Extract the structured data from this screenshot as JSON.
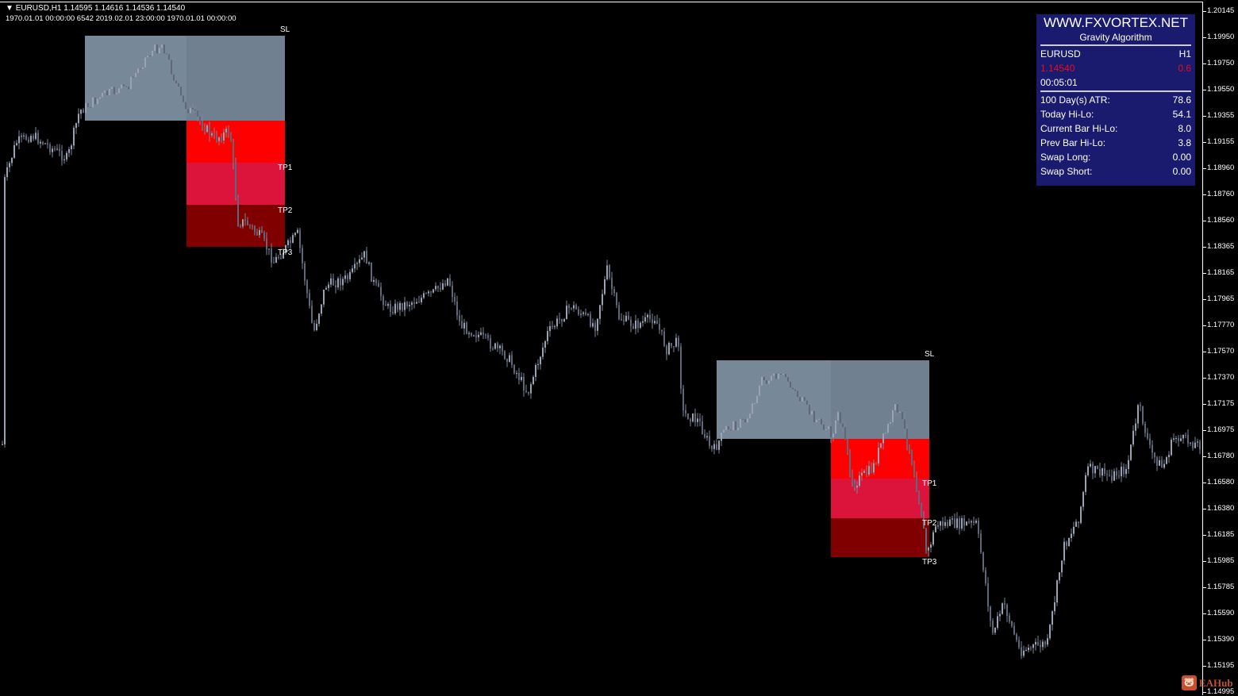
{
  "header": {
    "symbol_line": "EURUSD,H1  1.14595 1.14616 1.14536 1.14540",
    "info_line": "1970.01.01 00:00:00 6542 2019.02.01 23:00:00 1970.01.01 00:00:00"
  },
  "price_axis": [
    "1.20145",
    "1.19950",
    "1.19750",
    "1.19550",
    "1.19355",
    "1.19155",
    "1.18960",
    "1.18760",
    "1.18560",
    "1.18365",
    "1.18165",
    "1.17965",
    "1.17770",
    "1.17570",
    "1.17370",
    "1.17175",
    "1.16975",
    "1.16780",
    "1.16580",
    "1.16380",
    "1.16185",
    "1.15985",
    "1.15785",
    "1.15590",
    "1.15390",
    "1.15195",
    "1.14995"
  ],
  "zones": [
    {
      "sl": "SL",
      "tp1": "TP1",
      "tp2": "TP2",
      "tp3": "TP3"
    },
    {
      "sl": "SL",
      "tp1": "TP1",
      "tp2": "TP2",
      "tp3": "TP3"
    }
  ],
  "colors": {
    "bg": "#000000",
    "candle": "#7d8799",
    "sl_zone_light": "#778899",
    "sl_zone_dark": "#708090",
    "tp1": "#ff0000",
    "tp2": "#dc143c",
    "tp3": "#800000",
    "panel": "#1a1a6e"
  },
  "panel": {
    "site": "WWW.FXVORTEX.NET",
    "subtitle": "Gravity Algorithm",
    "symbol": "EURUSD",
    "timeframe": "H1",
    "price": "1.14540",
    "spread": "0.6",
    "timer": "00:05:01",
    "stats": [
      {
        "label": "100 Day(s) ATR:",
        "value": "78.6"
      },
      {
        "label": "Today Hi-Lo:",
        "value": "54.1"
      },
      {
        "label": "Current Bar Hi-Lo:",
        "value": "8.0"
      },
      {
        "label": "Prev Bar Hi-Lo:",
        "value": "3.8"
      },
      {
        "label": "Swap Long:",
        "value": "0.00"
      },
      {
        "label": "Swap Short:",
        "value": "0.00"
      }
    ]
  },
  "watermark": {
    "text": "EAHub",
    "icon": "pig-logo-icon"
  }
}
